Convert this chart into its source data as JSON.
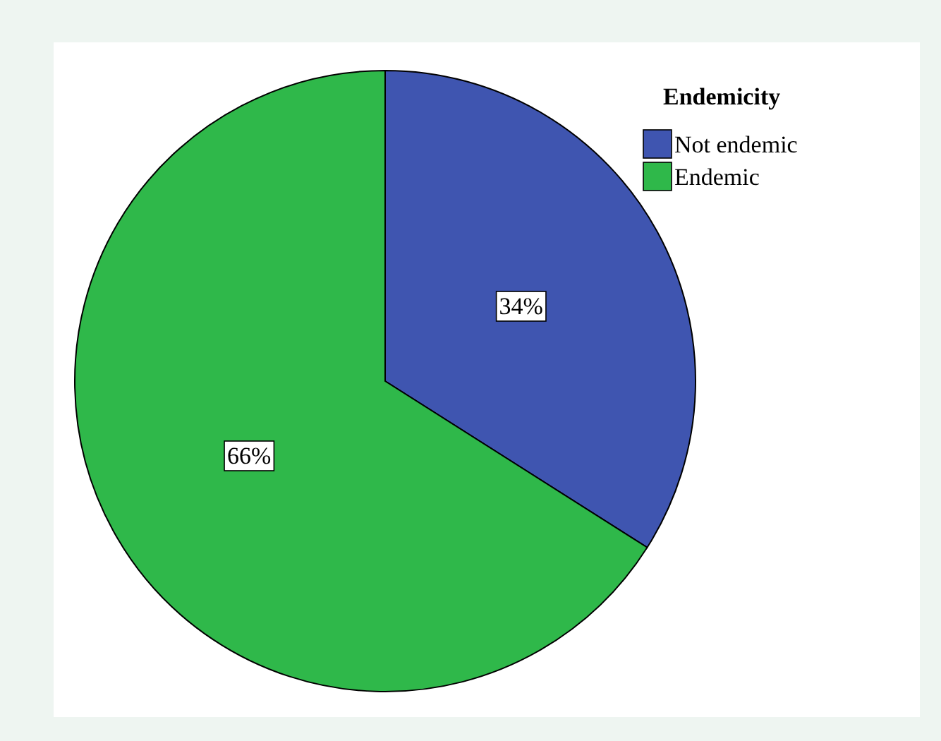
{
  "chart_data": {
    "type": "pie",
    "legend_title": "Endemicity",
    "categories": [
      "Not endemic",
      "Endemic"
    ],
    "values": [
      34,
      66
    ],
    "colors": [
      "#3f55b0",
      "#2fb84a"
    ],
    "value_labels": [
      "34%",
      "66%"
    ],
    "legend": "top right"
  }
}
